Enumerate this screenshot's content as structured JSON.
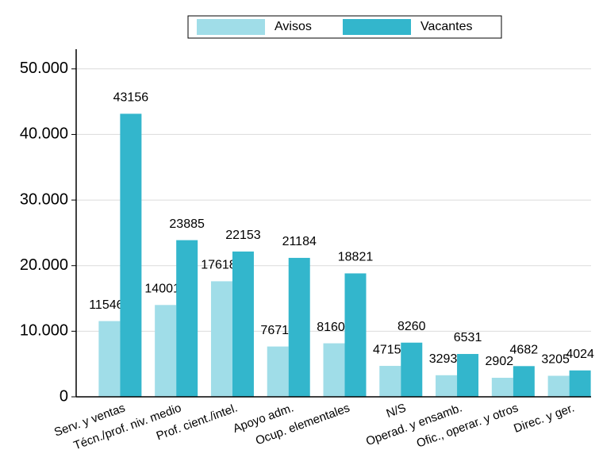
{
  "chart_data": {
    "type": "bar",
    "categories": [
      "Serv. y ventas",
      "Técn./prof. niv. medio",
      "Prof. cient./intel.",
      "Apoyo adm.",
      "Ocup. elementales",
      "N/S",
      "Operad. y ensamb.",
      "Ofic., operar. y otros",
      "Direc. y ger."
    ],
    "series": [
      {
        "name": "Avisos",
        "color": "#a0dde8",
        "values": [
          11546,
          14001,
          17618,
          7671,
          8160,
          4715,
          3293,
          2902,
          3205
        ]
      },
      {
        "name": "Vacantes",
        "color": "#33b6cc",
        "values": [
          43156,
          23885,
          22153,
          21184,
          18821,
          8260,
          6531,
          4682,
          4024
        ]
      }
    ],
    "ylim": [
      0,
      53000
    ],
    "yticks": [
      0,
      {
        "value": 10000,
        "label": "10.000"
      },
      {
        "value": 20000,
        "label": "20.000"
      },
      {
        "value": 30000,
        "label": "30.000"
      },
      {
        "value": 40000,
        "label": "40.000"
      },
      {
        "value": 50000,
        "label": "50.000"
      }
    ],
    "grid": true,
    "legend": "top"
  }
}
